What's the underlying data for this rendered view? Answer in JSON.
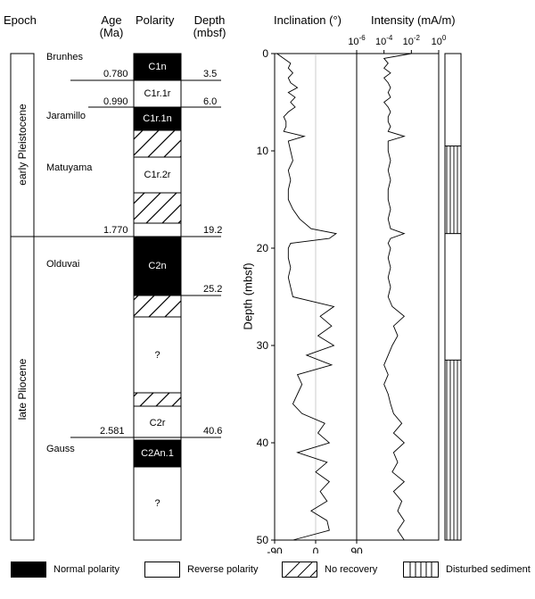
{
  "headers": {
    "epoch": "Epoch",
    "age_line1": "Age",
    "age_line2": "(Ma)",
    "polarity": "Polarity",
    "depth_line1": "Depth",
    "depth_line2": "(mbsf)",
    "inclination": "Inclination (°)",
    "intensity": "Intensity (mA/m)"
  },
  "epochs": [
    {
      "name": "early Pleistocene"
    },
    {
      "name": "late Pliocene"
    }
  ],
  "chrons": {
    "brunhes": "Brunhes",
    "jaramillo": "Jaramillo",
    "matuyama": "Matuyama",
    "olduvai": "Olduvai",
    "gauss": "Gauss"
  },
  "ages": {
    "a1": "0.780",
    "a2": "0.990",
    "a3": "1.770",
    "a4": "2.581"
  },
  "depth_marks": {
    "d1": "3.5",
    "d2": "6.0",
    "d3": "19.2",
    "d4": "25.2",
    "d5": "40.6"
  },
  "polarity_column": [
    {
      "type": "normal",
      "label": "C1n",
      "depth_top": 0,
      "depth_bottom": 3.5
    },
    {
      "type": "reverse",
      "label": "C1r.1r",
      "depth_top": 3.5,
      "depth_bottom": 6.0
    },
    {
      "type": "normal",
      "label": "C1r.1n",
      "depth_top": 6.0,
      "depth_bottom": 8.0
    },
    {
      "type": "norecovery",
      "label": "",
      "depth_top": 8.0,
      "depth_bottom": 10.5
    },
    {
      "type": "reverse",
      "label": "C1r.2r",
      "depth_top": 10.5,
      "depth_bottom": 14.0
    },
    {
      "type": "norecovery",
      "label": "",
      "depth_top": 14.0,
      "depth_bottom": 17.5
    },
    {
      "type": "reverse",
      "label": "",
      "depth_top": 17.5,
      "depth_bottom": 19.2
    },
    {
      "type": "normal",
      "label": "C2n",
      "depth_top": 19.2,
      "depth_bottom": 25.2
    },
    {
      "type": "norecovery",
      "label": "",
      "depth_top": 25.2,
      "depth_bottom": 27.0
    },
    {
      "type": "reverse",
      "label": "?",
      "depth_top": 27.0,
      "depth_bottom": 35.0
    },
    {
      "type": "norecovery",
      "label": "",
      "depth_top": 35.0,
      "depth_bottom": 36.5
    },
    {
      "type": "reverse",
      "label": "C2r",
      "depth_top": 36.5,
      "depth_bottom": 39.5
    },
    {
      "type": "normal",
      "label": "C2An.1",
      "depth_top": 39.5,
      "depth_bottom": 42.0
    },
    {
      "type": "reverse",
      "label": "?",
      "depth_top": 42.0,
      "depth_bottom": 50.0
    }
  ],
  "chart_data": {
    "type": "line",
    "ylabel": "Depth (mbsf)",
    "ylim": [
      0,
      50
    ],
    "y_inverted": true,
    "yticks": [
      "0",
      "10",
      "20",
      "30",
      "40",
      "50"
    ],
    "inclination": {
      "xlim": [
        -90,
        90
      ],
      "xticks": [
        "-90",
        "0",
        "90"
      ],
      "depth": [
        0,
        0.5,
        1,
        1.5,
        2,
        2.5,
        3,
        3.5,
        4,
        4.5,
        5,
        5.5,
        6,
        6.5,
        7,
        7.5,
        8,
        8.5,
        9,
        10,
        11,
        12,
        13,
        14,
        15,
        16,
        17,
        18,
        18.5,
        19,
        19.5,
        20,
        21,
        22,
        23,
        24,
        25,
        26,
        27,
        28,
        29,
        30,
        31,
        32,
        33,
        34,
        35,
        36,
        37,
        38,
        39,
        40,
        41,
        42,
        43,
        44,
        45,
        46,
        47,
        48,
        49,
        50
      ],
      "values": [
        -85,
        -70,
        -55,
        -60,
        -50,
        -60,
        -55,
        -40,
        -60,
        -45,
        -55,
        -45,
        -60,
        -70,
        -65,
        -65,
        -70,
        -25,
        -60,
        -55,
        -50,
        -60,
        -55,
        -60,
        -60,
        -50,
        -35,
        -10,
        45,
        30,
        -55,
        -60,
        -60,
        -55,
        -60,
        -55,
        -50,
        40,
        10,
        35,
        5,
        40,
        -20,
        35,
        -40,
        -30,
        -40,
        -50,
        -30,
        20,
        5,
        30,
        -40,
        25,
        0,
        30,
        10,
        25,
        -10,
        25,
        30,
        -50
      ]
    },
    "intensity": {
      "xscale": "log",
      "xlim": [
        1e-06,
        1
      ],
      "xticks": [
        "10-6",
        "10-4",
        "10-2",
        "100"
      ],
      "depth": [
        0,
        0.5,
        1,
        1.5,
        2,
        2.5,
        3,
        3.5,
        4,
        4.5,
        5,
        5.5,
        6,
        6.5,
        7,
        7.5,
        8,
        8.5,
        9,
        10,
        11,
        12,
        13,
        14,
        15,
        16,
        17,
        18,
        18.5,
        19,
        19.5,
        20,
        21,
        22,
        23,
        24,
        25,
        26,
        27,
        28,
        29,
        30,
        31,
        32,
        33,
        34,
        35,
        36,
        37,
        38,
        39,
        40,
        41,
        42,
        43,
        44,
        45,
        46,
        47,
        48,
        49,
        50
      ],
      "values": [
        0.01,
        0.0001,
        0.0002,
        0.0001,
        0.0003,
        0.0001,
        0.0002,
        0.0003,
        0.0002,
        0.0003,
        0.0001,
        0.0002,
        0.0003,
        0.0002,
        0.0002,
        0.0003,
        0.0002,
        0.003,
        0.0002,
        0.0002,
        0.0003,
        0.0002,
        0.0003,
        0.0002,
        0.0002,
        0.0003,
        0.0002,
        0.0003,
        0.003,
        0.0003,
        0.0002,
        0.0003,
        0.0002,
        0.0003,
        0.0002,
        0.0003,
        0.0002,
        0.0004,
        0.003,
        0.0005,
        0.001,
        0.0004,
        0.0002,
        0.0001,
        0.0002,
        0.0001,
        0.0002,
        0.0003,
        0.0005,
        0.002,
        0.0005,
        0.003,
        0.0005,
        0.001,
        0.0004,
        0.003,
        0.0005,
        0.002,
        0.001,
        0.003,
        0.001,
        0.003
      ]
    },
    "disturbed_intervals": [
      [
        9.5,
        18.5
      ],
      [
        31.5,
        50
      ]
    ]
  },
  "legend": [
    {
      "type": "normal",
      "label": "Normal polarity"
    },
    {
      "type": "reverse",
      "label": "Reverse polarity"
    },
    {
      "type": "norecovery",
      "label": "No recovery"
    },
    {
      "type": "disturbed",
      "label": "Disturbed sediment"
    }
  ]
}
